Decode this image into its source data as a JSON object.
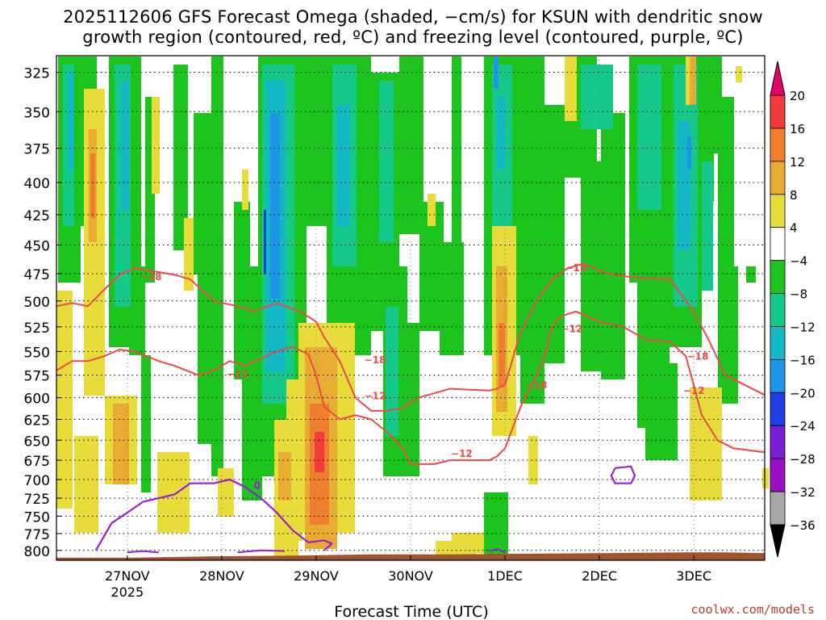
{
  "title_line1": "2025112606 GFS Forecast Omega (shaded, −cm/s) for KSUN with dendritic snow",
  "title_line2": "growth region (contoured, red, ºC) and freezing level (contoured, purple, ºC)",
  "credit": "coolwx.com/models",
  "chart_data": {
    "type": "heatmap",
    "title": "2025112606 GFS Forecast Omega (shaded, −cm/s) for KSUN with dendritic snow growth region (contoured, red, ºC) and freezing level (contoured, purple, ºC)",
    "xlabel": "Forecast Time (UTC)",
    "ylabel": "",
    "x_ticks": [
      "27NOV",
      "28NOV",
      "29NOV",
      "30NOV",
      "1DEC",
      "2DEC",
      "3DEC"
    ],
    "x_tick_hours": [
      18,
      42,
      66,
      90,
      114,
      138,
      162
    ],
    "x_sublabel": "2025",
    "xlim_hours": [
      0,
      180
    ],
    "y_ticks": [
      325,
      350,
      375,
      400,
      425,
      450,
      475,
      500,
      525,
      550,
      575,
      600,
      625,
      650,
      675,
      700,
      725,
      750,
      775,
      800
    ],
    "ylim_hpa": [
      815,
      315
    ],
    "y_scale": "log-pressure",
    "grid": true,
    "colorbar": {
      "labels": [
        "20",
        "16",
        "12",
        "8",
        "4",
        "−4",
        "−8",
        "−12",
        "−16",
        "−20",
        "−24",
        "−28",
        "−32",
        "−36"
      ],
      "colors": [
        "#e8006a",
        "#f23a3a",
        "#ef7f2c",
        "#e9ac33",
        "#e8dc3a",
        "#ffffff",
        "#1ec41e",
        "#14c98a",
        "#12b8c4",
        "#1e96e8",
        "#1e3ee6",
        "#7a1fd6",
        "#9a0fc2",
        "#a8a8a8",
        "#000000"
      ]
    },
    "contour_labels": [
      "−18",
      "−12",
      "−18",
      "−12",
      "−18",
      "−12",
      "−18",
      "−12",
      "−18",
      "−12",
      "0"
    ],
    "dgz_top_18": [
      [
        0,
        505
      ],
      [
        4,
        502
      ],
      [
        8,
        505
      ],
      [
        12,
        490
      ],
      [
        16,
        476
      ],
      [
        20,
        470
      ],
      [
        30,
        476
      ],
      [
        34,
        480
      ],
      [
        40,
        500
      ],
      [
        46,
        505
      ],
      [
        50,
        510
      ],
      [
        56,
        502
      ],
      [
        62,
        510
      ],
      [
        64,
        515
      ],
      [
        66,
        520
      ],
      [
        68,
        535
      ],
      [
        72,
        560
      ],
      [
        76,
        600
      ],
      [
        80,
        615
      ],
      [
        84,
        615
      ],
      [
        88,
        612
      ],
      [
        90,
        605
      ],
      [
        92,
        600
      ],
      [
        96,
        595
      ],
      [
        100,
        590
      ],
      [
        110,
        592
      ],
      [
        112,
        590
      ],
      [
        114,
        585
      ],
      [
        118,
        530
      ],
      [
        122,
        500
      ],
      [
        126,
        480
      ],
      [
        130,
        470
      ],
      [
        134,
        466
      ],
      [
        140,
        475
      ],
      [
        146,
        478
      ],
      [
        156,
        480
      ],
      [
        158,
        490
      ],
      [
        162,
        510
      ],
      [
        166,
        540
      ],
      [
        170,
        575
      ],
      [
        180,
        597
      ]
    ],
    "dgz_bottom_12": [
      [
        0,
        570
      ],
      [
        4,
        560
      ],
      [
        8,
        560
      ],
      [
        12,
        555
      ],
      [
        16,
        548
      ],
      [
        20,
        550
      ],
      [
        26,
        560
      ],
      [
        30,
        565
      ],
      [
        36,
        575
      ],
      [
        40,
        570
      ],
      [
        44,
        560
      ],
      [
        48,
        565
      ],
      [
        56,
        550
      ],
      [
        60,
        545
      ],
      [
        64,
        553
      ],
      [
        66,
        575
      ],
      [
        68,
        610
      ],
      [
        72,
        625
      ],
      [
        76,
        620
      ],
      [
        80,
        625
      ],
      [
        84,
        640
      ],
      [
        88,
        660
      ],
      [
        90,
        680
      ],
      [
        96,
        680
      ],
      [
        100,
        675
      ],
      [
        110,
        675
      ],
      [
        112,
        670
      ],
      [
        114,
        660
      ],
      [
        118,
        610
      ],
      [
        122,
        575
      ],
      [
        124,
        555
      ],
      [
        126,
        525
      ],
      [
        128,
        515
      ],
      [
        132,
        510
      ],
      [
        138,
        520
      ],
      [
        144,
        525
      ],
      [
        150,
        538
      ],
      [
        156,
        540
      ],
      [
        160,
        555
      ],
      [
        164,
        620
      ],
      [
        168,
        650
      ],
      [
        172,
        660
      ],
      [
        180,
        665
      ]
    ],
    "freezing_level_0": [
      [
        10,
        800
      ],
      [
        14,
        760
      ],
      [
        18,
        745
      ],
      [
        22,
        730
      ],
      [
        26,
        725
      ],
      [
        30,
        720
      ],
      [
        34,
        705
      ],
      [
        40,
        705
      ],
      [
        44,
        700
      ],
      [
        48,
        710
      ],
      [
        52,
        725
      ],
      [
        56,
        745
      ],
      [
        60,
        770
      ],
      [
        64,
        788
      ],
      [
        68,
        785
      ],
      [
        70,
        790
      ],
      [
        68,
        800
      ]
    ],
    "freezing_level_closed": [
      [
        142,
        685
      ],
      [
        146,
        683
      ],
      [
        147,
        695
      ],
      [
        146,
        705
      ],
      [
        142,
        705
      ],
      [
        141,
        695
      ],
      [
        142,
        685
      ]
    ]
  }
}
